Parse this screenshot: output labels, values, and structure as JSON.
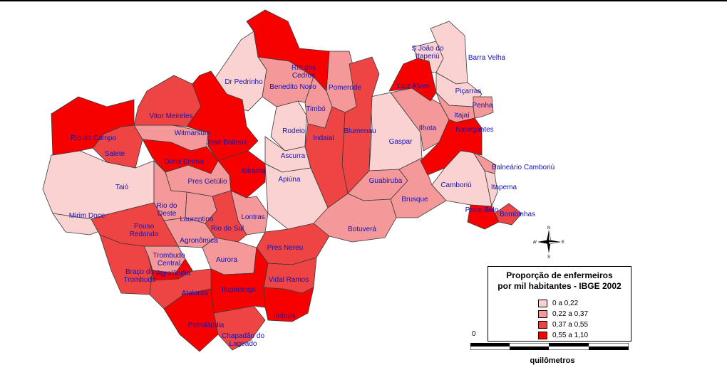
{
  "legend": {
    "title_line1": "Proporção de enfermeiros",
    "title_line2": "por mil habitantes - IBGE 2002",
    "classes": [
      {
        "label": "0      a 0,22",
        "color": "#fbd2d2"
      },
      {
        "label": "0,22 a 0,37",
        "color": "#f4989a"
      },
      {
        "label": "0,37 a 0,55",
        "color": "#ee4444"
      },
      {
        "label": "0,55 a 1,10",
        "color": "#f70000"
      }
    ]
  },
  "scale": {
    "zero": "0",
    "unit": "quilômetros"
  },
  "compass": {
    "n": "N",
    "s": "S",
    "w": "W",
    "e": "E"
  },
  "municipalities": [
    {
      "name": "S João do Itaperiú",
      "line1": "S João do",
      "line2": "Itaperiú",
      "class": 0
    },
    {
      "name": "Barra Velha",
      "line1": "Barra Velha",
      "class": 0
    },
    {
      "name": "Rio dos Cedros",
      "line1": "Rio dos",
      "line2": "Cedros",
      "class": 3
    },
    {
      "name": "Dr Pedrinho",
      "line1": "Dr Pedrinho",
      "class": 0
    },
    {
      "name": "Benedito Novo",
      "line1": "Benedito Novo",
      "class": 1
    },
    {
      "name": "Pomerode",
      "line1": "Pomerode",
      "class": 1
    },
    {
      "name": "Luiz Alves",
      "line1": "Luiz Alves",
      "class": 3
    },
    {
      "name": "Piçarras",
      "line1": "Piçarras",
      "class": 0
    },
    {
      "name": "Vitor Meireles",
      "line1": "Vitor Meireles",
      "class": 2
    },
    {
      "name": "Timbó",
      "line1": "Timbó",
      "class": 1
    },
    {
      "name": "Itajaí",
      "line1": "Itajaí",
      "class": 1
    },
    {
      "name": "Penha",
      "line1": "Penha",
      "class": 1
    },
    {
      "name": "Rio do Campo",
      "line1": "Rio do Campo",
      "class": 3
    },
    {
      "name": "Witmarsum",
      "line1": "Witmarsum",
      "class": 1
    },
    {
      "name": "Rodeio",
      "line1": "Rodeio",
      "class": 0
    },
    {
      "name": "Blumenau",
      "line1": "Blumenau",
      "class": 2
    },
    {
      "name": "Ilhota",
      "line1": "Ilhota",
      "class": 1
    },
    {
      "name": "Navegantes",
      "line1": "Navegantes",
      "class": 3
    },
    {
      "name": "Indaial",
      "line1": "Indaial",
      "class": 2
    },
    {
      "name": "José Boiteux",
      "line1": "José Boiteux",
      "class": 3
    },
    {
      "name": "Gaspar",
      "line1": "Gaspar",
      "class": 0
    },
    {
      "name": "Salete",
      "line1": "Salete",
      "class": 2
    },
    {
      "name": "Ascurra",
      "line1": "Ascurra",
      "class": 0
    },
    {
      "name": "Dona Emma",
      "line1": "Dona Emma",
      "class": 3
    },
    {
      "name": "Balneário Camboriú",
      "line1": "Balneário Camboriú",
      "class": 1
    },
    {
      "name": "Ibirama",
      "line1": "Ibirama",
      "class": 3
    },
    {
      "name": "Apiúna",
      "line1": "Apiúna",
      "class": 0
    },
    {
      "name": "Pres Getúlio",
      "line1": "Pres Getúlio",
      "class": 1
    },
    {
      "name": "Guabiruba",
      "line1": "Guabiruba",
      "class": 1
    },
    {
      "name": "Camboriú",
      "line1": "Camboriú",
      "class": 0
    },
    {
      "name": "Taió",
      "line1": "Taió",
      "class": 0
    },
    {
      "name": "Itapema",
      "line1": "Itapema",
      "class": 0
    },
    {
      "name": "Brusque",
      "line1": "Brusque",
      "class": 1
    },
    {
      "name": "Rio do Oeste",
      "line1": "Rio do",
      "line2": "Oeste",
      "class": 1
    },
    {
      "name": "Porto Belo",
      "line1": "Porto Belo",
      "class": 3
    },
    {
      "name": "Bombinhas",
      "line1": "Bombinhas",
      "class": 2
    },
    {
      "name": "Mirim Doce",
      "line1": "Mirim Doce",
      "class": 0
    },
    {
      "name": "Laurentino",
      "line1": "Laurentino",
      "class": 1
    },
    {
      "name": "Lontras",
      "line1": "Lontras",
      "class": 1
    },
    {
      "name": "Pouso Redondo",
      "line1": "Pouso",
      "line2": "Redondo",
      "class": 2
    },
    {
      "name": "Rio do Sul",
      "line1": "Rio do Sul",
      "class": 2
    },
    {
      "name": "Botuverá",
      "line1": "Botuverá",
      "class": 1
    },
    {
      "name": "Agronômica",
      "line1": "Agronômica",
      "class": 1
    },
    {
      "name": "Pres Nereu",
      "line1": "Pres Nereu",
      "class": 2
    },
    {
      "name": "Trombudo Central",
      "line1": "Trombudo",
      "line2": "Central",
      "class": 1
    },
    {
      "name": "Aurora",
      "line1": "Aurora",
      "class": 1
    },
    {
      "name": "Braço do Trombudo",
      "line1": "Braço do",
      "line2": "Trombudo",
      "class": 2
    },
    {
      "name": "Agrolândia",
      "line1": "Agrolândia",
      "class": 3
    },
    {
      "name": "Vidal Ramos",
      "line1": "Vidal Ramos",
      "class": 2
    },
    {
      "name": "Atalanta",
      "line1": "Atalanta",
      "class": 2
    },
    {
      "name": "Ituporanga",
      "line1": "Ituporanga",
      "class": 3
    },
    {
      "name": "Imbuia",
      "line1": "Imbuia",
      "class": 3
    },
    {
      "name": "Petrolândia",
      "line1": "Petrolândia",
      "class": 3
    },
    {
      "name": "Chapadão do Lageado",
      "line1": "Chapadão do",
      "line2": "Lageado",
      "class": 2
    }
  ]
}
